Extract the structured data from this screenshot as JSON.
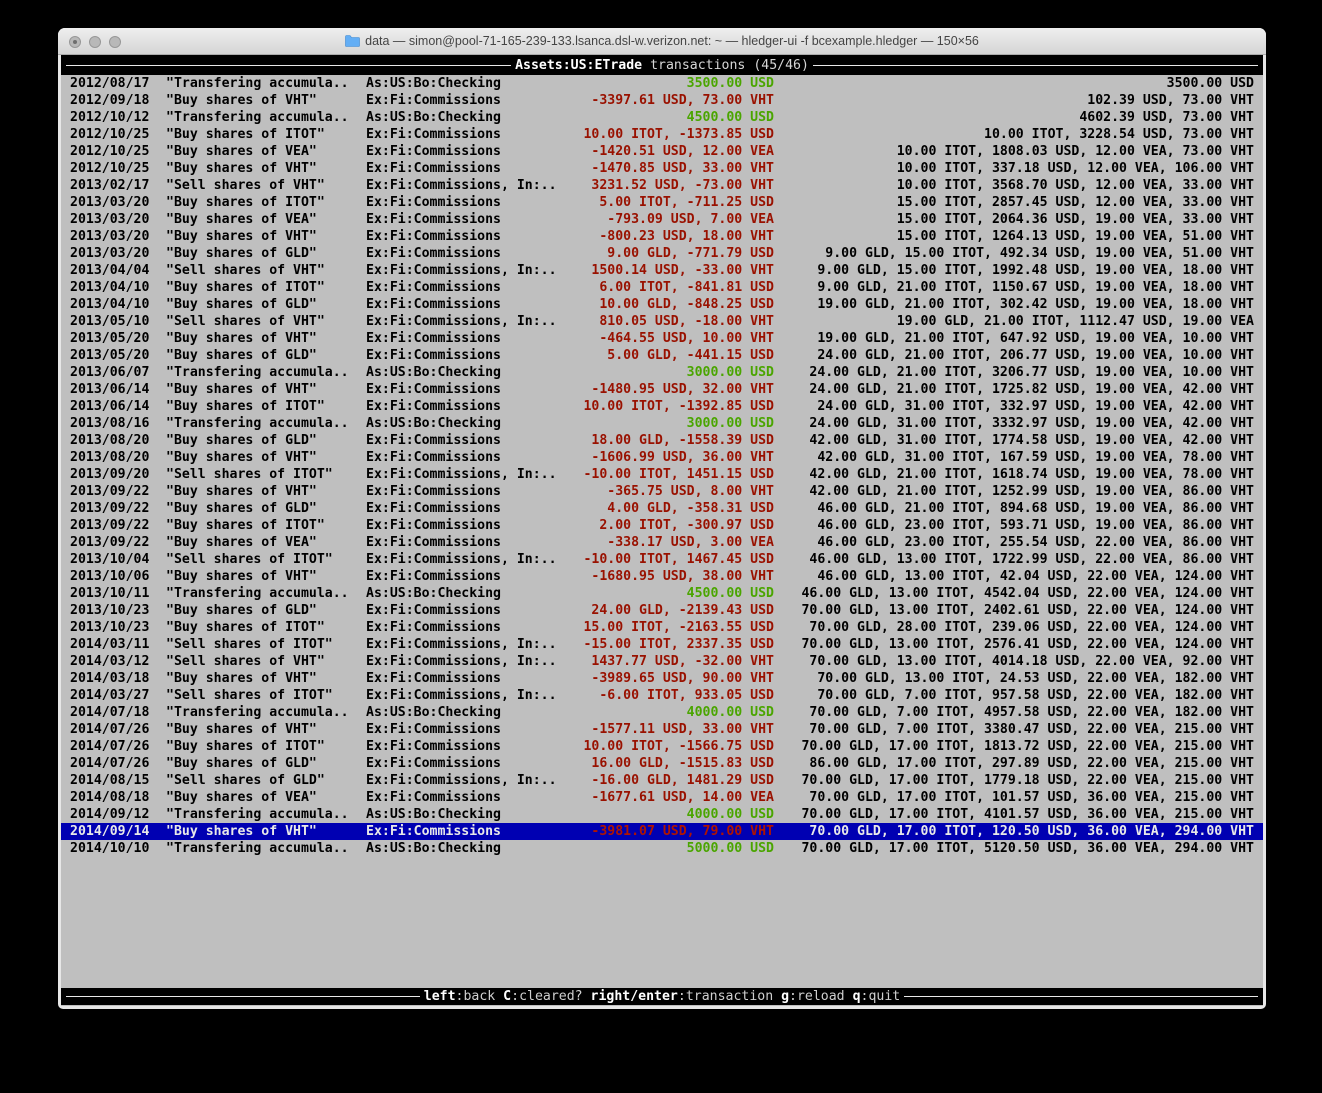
{
  "window": {
    "title": "data — simon@pool-71-165-239-133.lsanca.dsl-w.verizon.net: ~ — hledger-ui -f bcexample.hledger — 150×56",
    "traffic_lights": [
      "close",
      "minimize",
      "zoom"
    ]
  },
  "header": {
    "account": "Assets:US:ETrade",
    "label": "transactions",
    "count": "(45/46)"
  },
  "footer": {
    "hints": [
      {
        "key": "left",
        "desc": ":back "
      },
      {
        "key": "C",
        "desc": ":cleared? "
      },
      {
        "key": "right/enter",
        "desc": ":transaction "
      },
      {
        "key": "g",
        "desc": ":reload "
      },
      {
        "key": "q",
        "desc": ":quit"
      }
    ]
  },
  "colors": {
    "terminal_bg": "#bfbfbf",
    "bar_bg": "#000000",
    "red": "#991100",
    "green": "#4aa500",
    "selection_bg": "#0000b2",
    "selection_red": "#b01500"
  },
  "transactions": [
    {
      "date": "2012/08/17",
      "description": "\"Transfering accumula..",
      "accounts": "As:US:Bo:Checking",
      "amount": "3500.00 USD",
      "amount_color": "green",
      "balance": "3500.00 USD",
      "selected": false
    },
    {
      "date": "2012/09/18",
      "description": "\"Buy shares of VHT\"",
      "accounts": "Ex:Fi:Commissions",
      "amount": "-3397.61 USD, 73.00 VHT",
      "amount_color": "red",
      "balance": "102.39 USD, 73.00 VHT",
      "selected": false
    },
    {
      "date": "2012/10/12",
      "description": "\"Transfering accumula..",
      "accounts": "As:US:Bo:Checking",
      "amount": "4500.00 USD",
      "amount_color": "green",
      "balance": "4602.39 USD, 73.00 VHT",
      "selected": false
    },
    {
      "date": "2012/10/25",
      "description": "\"Buy shares of ITOT\"",
      "accounts": "Ex:Fi:Commissions",
      "amount": "10.00 ITOT, -1373.85 USD",
      "amount_color": "red",
      "balance": "10.00 ITOT, 3228.54 USD, 73.00 VHT",
      "selected": false
    },
    {
      "date": "2012/10/25",
      "description": "\"Buy shares of VEA\"",
      "accounts": "Ex:Fi:Commissions",
      "amount": "-1420.51 USD, 12.00 VEA",
      "amount_color": "red",
      "balance": "10.00 ITOT, 1808.03 USD, 12.00 VEA, 73.00 VHT",
      "selected": false
    },
    {
      "date": "2012/10/25",
      "description": "\"Buy shares of VHT\"",
      "accounts": "Ex:Fi:Commissions",
      "amount": "-1470.85 USD, 33.00 VHT",
      "amount_color": "red",
      "balance": "10.00 ITOT, 337.18 USD, 12.00 VEA, 106.00 VHT",
      "selected": false
    },
    {
      "date": "2013/02/17",
      "description": "\"Sell shares of VHT\"",
      "accounts": "Ex:Fi:Commissions, In:..",
      "amount": "3231.52 USD, -73.00 VHT",
      "amount_color": "red",
      "balance": "10.00 ITOT, 3568.70 USD, 12.00 VEA, 33.00 VHT",
      "selected": false
    },
    {
      "date": "2013/03/20",
      "description": "\"Buy shares of ITOT\"",
      "accounts": "Ex:Fi:Commissions",
      "amount": "5.00 ITOT, -711.25 USD",
      "amount_color": "red",
      "balance": "15.00 ITOT, 2857.45 USD, 12.00 VEA, 33.00 VHT",
      "selected": false
    },
    {
      "date": "2013/03/20",
      "description": "\"Buy shares of VEA\"",
      "accounts": "Ex:Fi:Commissions",
      "amount": "-793.09 USD, 7.00 VEA",
      "amount_color": "red",
      "balance": "15.00 ITOT, 2064.36 USD, 19.00 VEA, 33.00 VHT",
      "selected": false
    },
    {
      "date": "2013/03/20",
      "description": "\"Buy shares of VHT\"",
      "accounts": "Ex:Fi:Commissions",
      "amount": "-800.23 USD, 18.00 VHT",
      "amount_color": "red",
      "balance": "15.00 ITOT, 1264.13 USD, 19.00 VEA, 51.00 VHT",
      "selected": false
    },
    {
      "date": "2013/03/20",
      "description": "\"Buy shares of GLD\"",
      "accounts": "Ex:Fi:Commissions",
      "amount": "9.00 GLD, -771.79 USD",
      "amount_color": "red",
      "balance": "9.00 GLD, 15.00 ITOT, 492.34 USD, 19.00 VEA, 51.00 VHT",
      "selected": false
    },
    {
      "date": "2013/04/04",
      "description": "\"Sell shares of VHT\"",
      "accounts": "Ex:Fi:Commissions, In:..",
      "amount": "1500.14 USD, -33.00 VHT",
      "amount_color": "red",
      "balance": "9.00 GLD, 15.00 ITOT, 1992.48 USD, 19.00 VEA, 18.00 VHT",
      "selected": false
    },
    {
      "date": "2013/04/10",
      "description": "\"Buy shares of ITOT\"",
      "accounts": "Ex:Fi:Commissions",
      "amount": "6.00 ITOT, -841.81 USD",
      "amount_color": "red",
      "balance": "9.00 GLD, 21.00 ITOT, 1150.67 USD, 19.00 VEA, 18.00 VHT",
      "selected": false
    },
    {
      "date": "2013/04/10",
      "description": "\"Buy shares of GLD\"",
      "accounts": "Ex:Fi:Commissions",
      "amount": "10.00 GLD, -848.25 USD",
      "amount_color": "red",
      "balance": "19.00 GLD, 21.00 ITOT, 302.42 USD, 19.00 VEA, 18.00 VHT",
      "selected": false
    },
    {
      "date": "2013/05/10",
      "description": "\"Sell shares of VHT\"",
      "accounts": "Ex:Fi:Commissions, In:..",
      "amount": "810.05 USD, -18.00 VHT",
      "amount_color": "red",
      "balance": "19.00 GLD, 21.00 ITOT, 1112.47 USD, 19.00 VEA",
      "selected": false
    },
    {
      "date": "2013/05/20",
      "description": "\"Buy shares of VHT\"",
      "accounts": "Ex:Fi:Commissions",
      "amount": "-464.55 USD, 10.00 VHT",
      "amount_color": "red",
      "balance": "19.00 GLD, 21.00 ITOT, 647.92 USD, 19.00 VEA, 10.00 VHT",
      "selected": false
    },
    {
      "date": "2013/05/20",
      "description": "\"Buy shares of GLD\"",
      "accounts": "Ex:Fi:Commissions",
      "amount": "5.00 GLD, -441.15 USD",
      "amount_color": "red",
      "balance": "24.00 GLD, 21.00 ITOT, 206.77 USD, 19.00 VEA, 10.00 VHT",
      "selected": false
    },
    {
      "date": "2013/06/07",
      "description": "\"Transfering accumula..",
      "accounts": "As:US:Bo:Checking",
      "amount": "3000.00 USD",
      "amount_color": "green",
      "balance": "24.00 GLD, 21.00 ITOT, 3206.77 USD, 19.00 VEA, 10.00 VHT",
      "selected": false
    },
    {
      "date": "2013/06/14",
      "description": "\"Buy shares of VHT\"",
      "accounts": "Ex:Fi:Commissions",
      "amount": "-1480.95 USD, 32.00 VHT",
      "amount_color": "red",
      "balance": "24.00 GLD, 21.00 ITOT, 1725.82 USD, 19.00 VEA, 42.00 VHT",
      "selected": false
    },
    {
      "date": "2013/06/14",
      "description": "\"Buy shares of ITOT\"",
      "accounts": "Ex:Fi:Commissions",
      "amount": "10.00 ITOT, -1392.85 USD",
      "amount_color": "red",
      "balance": "24.00 GLD, 31.00 ITOT, 332.97 USD, 19.00 VEA, 42.00 VHT",
      "selected": false
    },
    {
      "date": "2013/08/16",
      "description": "\"Transfering accumula..",
      "accounts": "As:US:Bo:Checking",
      "amount": "3000.00 USD",
      "amount_color": "green",
      "balance": "24.00 GLD, 31.00 ITOT, 3332.97 USD, 19.00 VEA, 42.00 VHT",
      "selected": false
    },
    {
      "date": "2013/08/20",
      "description": "\"Buy shares of GLD\"",
      "accounts": "Ex:Fi:Commissions",
      "amount": "18.00 GLD, -1558.39 USD",
      "amount_color": "red",
      "balance": "42.00 GLD, 31.00 ITOT, 1774.58 USD, 19.00 VEA, 42.00 VHT",
      "selected": false
    },
    {
      "date": "2013/08/20",
      "description": "\"Buy shares of VHT\"",
      "accounts": "Ex:Fi:Commissions",
      "amount": "-1606.99 USD, 36.00 VHT",
      "amount_color": "red",
      "balance": "42.00 GLD, 31.00 ITOT, 167.59 USD, 19.00 VEA, 78.00 VHT",
      "selected": false
    },
    {
      "date": "2013/09/20",
      "description": "\"Sell shares of ITOT\"",
      "accounts": "Ex:Fi:Commissions, In:..",
      "amount": "-10.00 ITOT, 1451.15 USD",
      "amount_color": "red",
      "balance": "42.00 GLD, 21.00 ITOT, 1618.74 USD, 19.00 VEA, 78.00 VHT",
      "selected": false
    },
    {
      "date": "2013/09/22",
      "description": "\"Buy shares of VHT\"",
      "accounts": "Ex:Fi:Commissions",
      "amount": "-365.75 USD, 8.00 VHT",
      "amount_color": "red",
      "balance": "42.00 GLD, 21.00 ITOT, 1252.99 USD, 19.00 VEA, 86.00 VHT",
      "selected": false
    },
    {
      "date": "2013/09/22",
      "description": "\"Buy shares of GLD\"",
      "accounts": "Ex:Fi:Commissions",
      "amount": "4.00 GLD, -358.31 USD",
      "amount_color": "red",
      "balance": "46.00 GLD, 21.00 ITOT, 894.68 USD, 19.00 VEA, 86.00 VHT",
      "selected": false
    },
    {
      "date": "2013/09/22",
      "description": "\"Buy shares of ITOT\"",
      "accounts": "Ex:Fi:Commissions",
      "amount": "2.00 ITOT, -300.97 USD",
      "amount_color": "red",
      "balance": "46.00 GLD, 23.00 ITOT, 593.71 USD, 19.00 VEA, 86.00 VHT",
      "selected": false
    },
    {
      "date": "2013/09/22",
      "description": "\"Buy shares of VEA\"",
      "accounts": "Ex:Fi:Commissions",
      "amount": "-338.17 USD, 3.00 VEA",
      "amount_color": "red",
      "balance": "46.00 GLD, 23.00 ITOT, 255.54 USD, 22.00 VEA, 86.00 VHT",
      "selected": false
    },
    {
      "date": "2013/10/04",
      "description": "\"Sell shares of ITOT\"",
      "accounts": "Ex:Fi:Commissions, In:..",
      "amount": "-10.00 ITOT, 1467.45 USD",
      "amount_color": "red",
      "balance": "46.00 GLD, 13.00 ITOT, 1722.99 USD, 22.00 VEA, 86.00 VHT",
      "selected": false
    },
    {
      "date": "2013/10/06",
      "description": "\"Buy shares of VHT\"",
      "accounts": "Ex:Fi:Commissions",
      "amount": "-1680.95 USD, 38.00 VHT",
      "amount_color": "red",
      "balance": "46.00 GLD, 13.00 ITOT, 42.04 USD, 22.00 VEA, 124.00 VHT",
      "selected": false
    },
    {
      "date": "2013/10/11",
      "description": "\"Transfering accumula..",
      "accounts": "As:US:Bo:Checking",
      "amount": "4500.00 USD",
      "amount_color": "green",
      "balance": "46.00 GLD, 13.00 ITOT, 4542.04 USD, 22.00 VEA, 124.00 VHT",
      "selected": false
    },
    {
      "date": "2013/10/23",
      "description": "\"Buy shares of GLD\"",
      "accounts": "Ex:Fi:Commissions",
      "amount": "24.00 GLD, -2139.43 USD",
      "amount_color": "red",
      "balance": "70.00 GLD, 13.00 ITOT, 2402.61 USD, 22.00 VEA, 124.00 VHT",
      "selected": false
    },
    {
      "date": "2013/10/23",
      "description": "\"Buy shares of ITOT\"",
      "accounts": "Ex:Fi:Commissions",
      "amount": "15.00 ITOT, -2163.55 USD",
      "amount_color": "red",
      "balance": "70.00 GLD, 28.00 ITOT, 239.06 USD, 22.00 VEA, 124.00 VHT",
      "selected": false
    },
    {
      "date": "2014/03/11",
      "description": "\"Sell shares of ITOT\"",
      "accounts": "Ex:Fi:Commissions, In:..",
      "amount": "-15.00 ITOT, 2337.35 USD",
      "amount_color": "red",
      "balance": "70.00 GLD, 13.00 ITOT, 2576.41 USD, 22.00 VEA, 124.00 VHT",
      "selected": false
    },
    {
      "date": "2014/03/12",
      "description": "\"Sell shares of VHT\"",
      "accounts": "Ex:Fi:Commissions, In:..",
      "amount": "1437.77 USD, -32.00 VHT",
      "amount_color": "red",
      "balance": "70.00 GLD, 13.00 ITOT, 4014.18 USD, 22.00 VEA, 92.00 VHT",
      "selected": false
    },
    {
      "date": "2014/03/18",
      "description": "\"Buy shares of VHT\"",
      "accounts": "Ex:Fi:Commissions",
      "amount": "-3989.65 USD, 90.00 VHT",
      "amount_color": "red",
      "balance": "70.00 GLD, 13.00 ITOT, 24.53 USD, 22.00 VEA, 182.00 VHT",
      "selected": false
    },
    {
      "date": "2014/03/27",
      "description": "\"Sell shares of ITOT\"",
      "accounts": "Ex:Fi:Commissions, In:..",
      "amount": "-6.00 ITOT, 933.05 USD",
      "amount_color": "red",
      "balance": "70.00 GLD, 7.00 ITOT, 957.58 USD, 22.00 VEA, 182.00 VHT",
      "selected": false
    },
    {
      "date": "2014/07/18",
      "description": "\"Transfering accumula..",
      "accounts": "As:US:Bo:Checking",
      "amount": "4000.00 USD",
      "amount_color": "green",
      "balance": "70.00 GLD, 7.00 ITOT, 4957.58 USD, 22.00 VEA, 182.00 VHT",
      "selected": false
    },
    {
      "date": "2014/07/26",
      "description": "\"Buy shares of VHT\"",
      "accounts": "Ex:Fi:Commissions",
      "amount": "-1577.11 USD, 33.00 VHT",
      "amount_color": "red",
      "balance": "70.00 GLD, 7.00 ITOT, 3380.47 USD, 22.00 VEA, 215.00 VHT",
      "selected": false
    },
    {
      "date": "2014/07/26",
      "description": "\"Buy shares of ITOT\"",
      "accounts": "Ex:Fi:Commissions",
      "amount": "10.00 ITOT, -1566.75 USD",
      "amount_color": "red",
      "balance": "70.00 GLD, 17.00 ITOT, 1813.72 USD, 22.00 VEA, 215.00 VHT",
      "selected": false
    },
    {
      "date": "2014/07/26",
      "description": "\"Buy shares of GLD\"",
      "accounts": "Ex:Fi:Commissions",
      "amount": "16.00 GLD, -1515.83 USD",
      "amount_color": "red",
      "balance": "86.00 GLD, 17.00 ITOT, 297.89 USD, 22.00 VEA, 215.00 VHT",
      "selected": false
    },
    {
      "date": "2014/08/15",
      "description": "\"Sell shares of GLD\"",
      "accounts": "Ex:Fi:Commissions, In:..",
      "amount": "-16.00 GLD, 1481.29 USD",
      "amount_color": "red",
      "balance": "70.00 GLD, 17.00 ITOT, 1779.18 USD, 22.00 VEA, 215.00 VHT",
      "selected": false
    },
    {
      "date": "2014/08/18",
      "description": "\"Buy shares of VEA\"",
      "accounts": "Ex:Fi:Commissions",
      "amount": "-1677.61 USD, 14.00 VEA",
      "amount_color": "red",
      "balance": "70.00 GLD, 17.00 ITOT, 101.57 USD, 36.00 VEA, 215.00 VHT",
      "selected": false
    },
    {
      "date": "2014/09/12",
      "description": "\"Transfering accumula..",
      "accounts": "As:US:Bo:Checking",
      "amount": "4000.00 USD",
      "amount_color": "green",
      "balance": "70.00 GLD, 17.00 ITOT, 4101.57 USD, 36.00 VEA, 215.00 VHT",
      "selected": false
    },
    {
      "date": "2014/09/14",
      "description": "\"Buy shares of VHT\"",
      "accounts": "Ex:Fi:Commissions",
      "amount": "-3981.07 USD, 79.00 VHT",
      "amount_color": "red",
      "balance": "70.00 GLD, 17.00 ITOT, 120.50 USD, 36.00 VEA, 294.00 VHT",
      "selected": true
    },
    {
      "date": "2014/10/10",
      "description": "\"Transfering accumula..",
      "accounts": "As:US:Bo:Checking",
      "amount": "5000.00 USD",
      "amount_color": "green",
      "balance": "70.00 GLD, 17.00 ITOT, 5120.50 USD, 36.00 VEA, 294.00 VHT",
      "selected": false
    }
  ]
}
